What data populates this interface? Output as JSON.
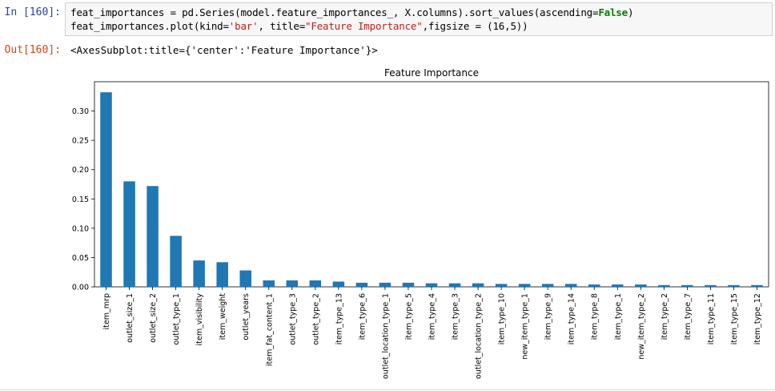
{
  "cell": {
    "in_prompt": "In [160]:",
    "out_prompt": "Out[160]:",
    "code": {
      "line1": "feat_importances = pd.Series(model.feature_importances_, X.columns).sort_values(ascending=False)",
      "line2_pre": "feat_importances.plot(kind=",
      "line2_str1": "'bar'",
      "line2_mid": ", title=",
      "line2_str2": "\"Feature Importance\"",
      "line2_post": ",figsize = (16,5))",
      "line1_pre": "feat_importances = pd.Series(model.feature_importances_, X.columns).sort_values(ascending=",
      "line1_kw": "False",
      "line1_post": ")"
    },
    "output_text": "<AxesSubplot:title={'center':'Feature Importance'}>"
  },
  "chart_data": {
    "type": "bar",
    "title": "Feature Importance",
    "xlabel": "",
    "ylabel": "",
    "ylim": [
      0,
      0.35
    ],
    "yticks": [
      "0.00",
      "0.05",
      "0.10",
      "0.15",
      "0.20",
      "0.25",
      "0.30"
    ],
    "grid": false,
    "bar_color": "#1f77b4",
    "categories": [
      "item_mrp",
      "outlet_size_1",
      "outlet_size_2",
      "outlet_type_1",
      "item_visibility",
      "item_weight",
      "outlet_years",
      "item_fat_content_1",
      "outlet_type_3",
      "outlet_type_2",
      "item_type_13",
      "item_type_6",
      "outlet_location_type_1",
      "item_type_5",
      "item_type_4",
      "item_type_3",
      "outlet_location_type_2",
      "item_type_10",
      "new_item_type_1",
      "item_type_9",
      "item_type_14",
      "item_type_8",
      "item_type_1",
      "new_item_type_2",
      "item_type_2",
      "item_type_7",
      "item_type_11",
      "item_type_15",
      "item_type_12"
    ],
    "values": [
      0.332,
      0.18,
      0.172,
      0.087,
      0.045,
      0.042,
      0.028,
      0.011,
      0.011,
      0.011,
      0.009,
      0.007,
      0.007,
      0.007,
      0.006,
      0.006,
      0.006,
      0.005,
      0.005,
      0.005,
      0.005,
      0.004,
      0.004,
      0.004,
      0.003,
      0.003,
      0.003,
      0.003,
      0.003
    ]
  }
}
